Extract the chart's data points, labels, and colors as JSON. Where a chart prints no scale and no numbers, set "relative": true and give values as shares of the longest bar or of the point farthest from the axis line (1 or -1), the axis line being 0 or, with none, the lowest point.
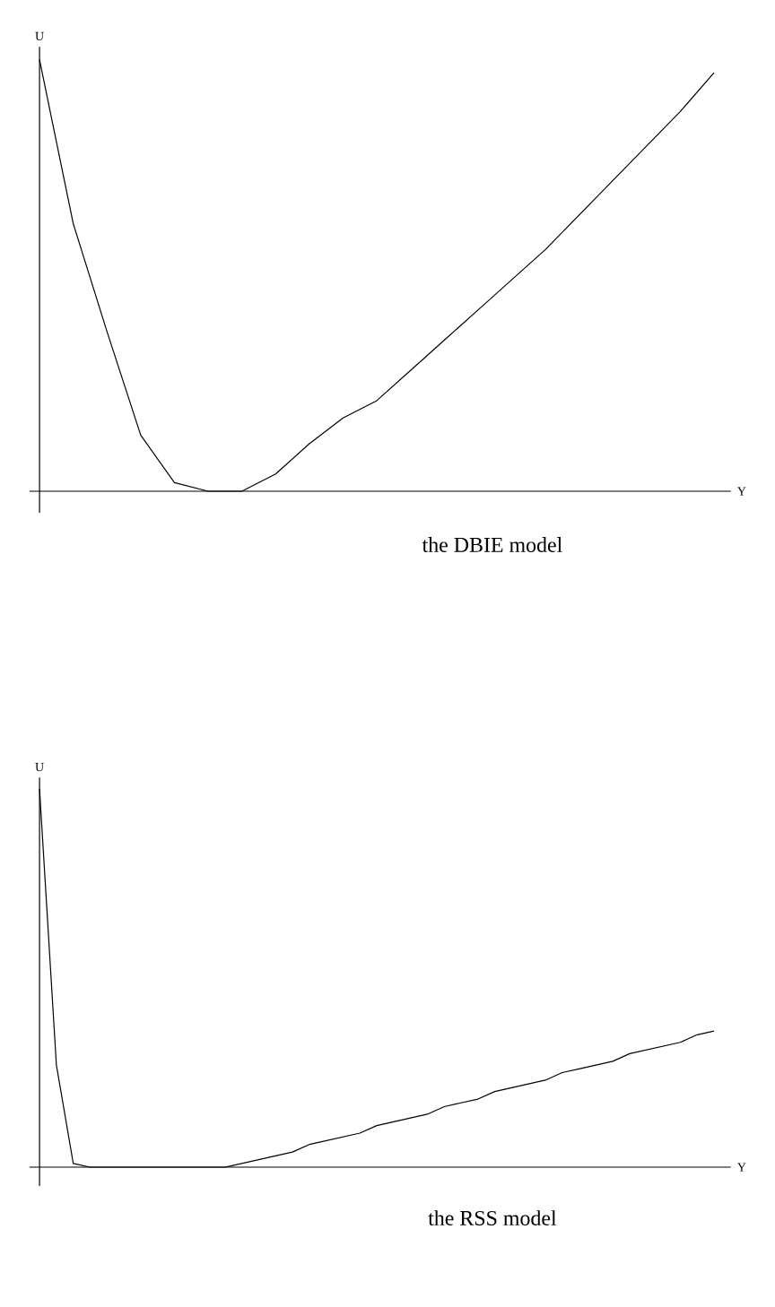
{
  "chart_data": [
    {
      "type": "line",
      "xlabel": "Y",
      "ylabel": "U",
      "relative": true,
      "color": "#000000",
      "annotations": [
        "the DBIE model"
      ],
      "categories": [
        null,
        null,
        null,
        null,
        null,
        null,
        null,
        null,
        null,
        null,
        null,
        null,
        null,
        null,
        null,
        null,
        null,
        null,
        null,
        null,
        null
      ],
      "values": [
        1.0,
        0.62,
        0.37,
        0.13,
        0.02,
        0,
        0,
        0.04,
        0.11,
        0.17,
        0.21,
        0.28,
        0.35,
        0.42,
        0.49,
        0.56,
        0.64,
        0.72,
        0.8,
        0.88,
        0.97
      ]
    },
    {
      "type": "line",
      "xlabel": "Y",
      "ylabel": "U",
      "relative": true,
      "color": "#000000",
      "annotations": [
        "the RSS model"
      ],
      "categories": [
        null,
        null,
        null,
        null,
        null,
        null,
        null,
        null,
        null,
        null,
        null,
        null,
        null,
        null,
        null,
        null,
        null,
        null,
        null,
        null,
        null,
        null,
        null,
        null,
        null,
        null,
        null,
        null,
        null,
        null,
        null,
        null,
        null,
        null,
        null,
        null,
        null,
        null,
        null,
        null,
        null
      ],
      "values": [
        1.0,
        0.27,
        0.01,
        0,
        0,
        0,
        0,
        0,
        0,
        0,
        0,
        0,
        0.01,
        0.02,
        0.03,
        0.04,
        0.06,
        0.07,
        0.08,
        0.09,
        0.11,
        0.12,
        0.13,
        0.14,
        0.16,
        0.17,
        0.18,
        0.2,
        0.21,
        0.22,
        0.23,
        0.25,
        0.26,
        0.27,
        0.28,
        0.3,
        0.31,
        0.32,
        0.33,
        0.35,
        0.36
      ]
    }
  ]
}
